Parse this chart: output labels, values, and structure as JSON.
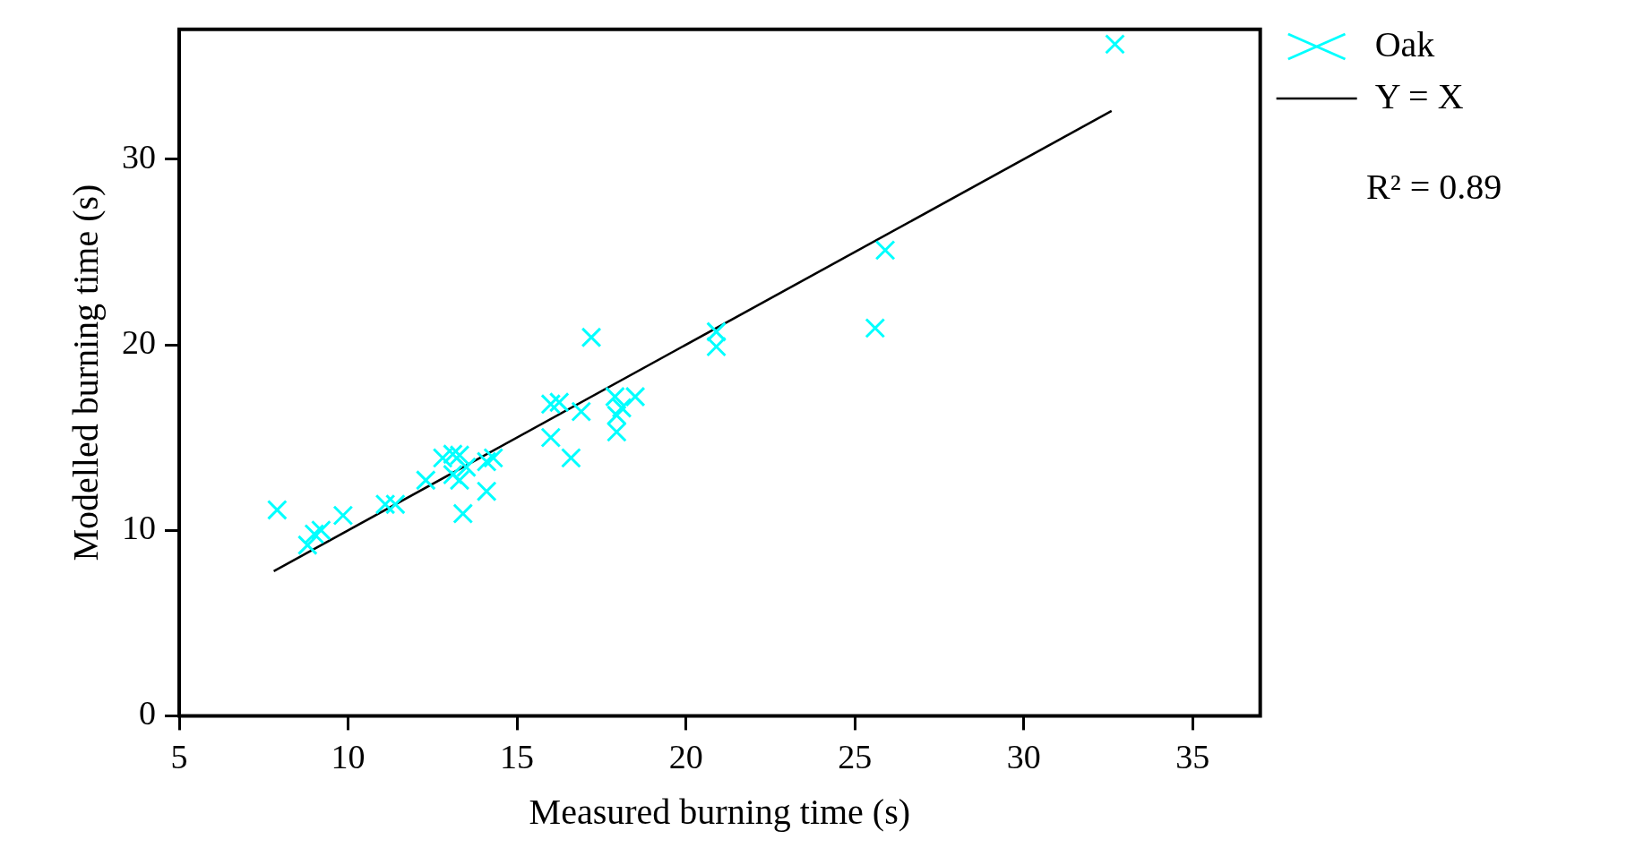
{
  "chart_data": {
    "type": "scatter",
    "xlabel": "Measured burning time (s)",
    "ylabel": "Modelled burning time (s)",
    "xlim": [
      5,
      37
    ],
    "xticks": [
      5,
      10,
      15,
      20,
      25,
      30,
      35
    ],
    "ylim": [
      0,
      37
    ],
    "yticks": [
      0,
      10,
      20,
      30
    ],
    "grid": false,
    "legend": "top right",
    "marker": "cross",
    "annotations": [
      "R² = 0.89"
    ],
    "series": [
      {
        "name": "Oak",
        "color": "#00ffff",
        "x": [
          7.9,
          8.8,
          9.0,
          9.2,
          9.85,
          11.1,
          11.4,
          12.3,
          12.8,
          13.1,
          13.3,
          13.1,
          13.3,
          13.5,
          13.4,
          14.1,
          14.1,
          14.3,
          16.0,
          16.0,
          16.25,
          16.9,
          16.6,
          17.2,
          17.9,
          17.95,
          18.1,
          17.95,
          18.5,
          20.9,
          20.9,
          25.6,
          25.9,
          32.7
        ],
        "values": [
          11.1,
          9.2,
          9.8,
          10.0,
          10.8,
          11.4,
          11.4,
          12.7,
          13.9,
          14.1,
          14.05,
          13.0,
          12.7,
          13.4,
          10.9,
          12.1,
          13.7,
          13.9,
          15.0,
          16.8,
          16.9,
          16.4,
          13.9,
          20.4,
          17.2,
          16.2,
          16.6,
          15.3,
          17.2,
          20.7,
          19.9,
          20.9,
          25.1,
          36.2
        ]
      },
      {
        "name": "Y = X",
        "type": "line",
        "color": "#000000",
        "marker": "none",
        "x": [
          7.8,
          32.6
        ],
        "values": [
          7.8,
          32.6
        ]
      }
    ]
  }
}
